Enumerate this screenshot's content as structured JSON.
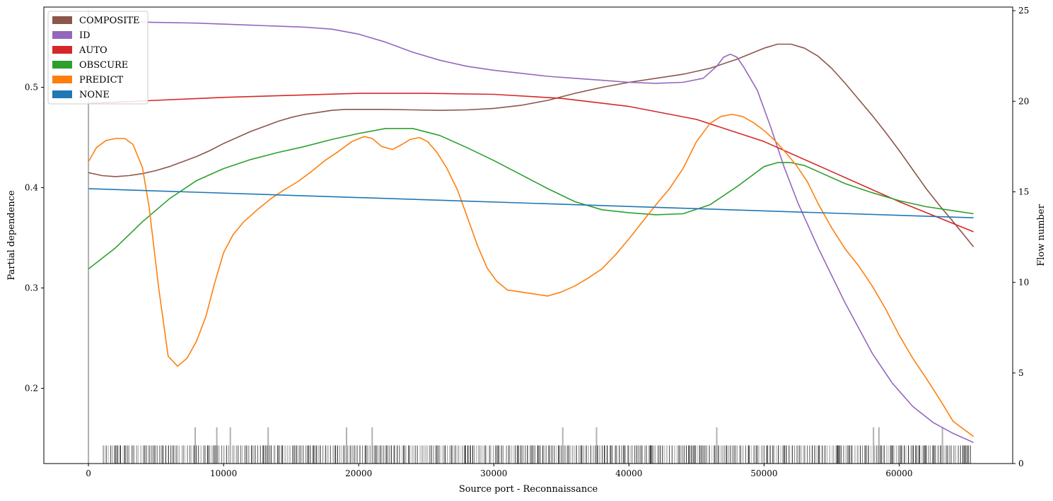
{
  "chart_data": {
    "type": "line",
    "xlabel": "Source port - Reconnaissance",
    "ylabel": "Partial dependence",
    "y2label": "Flow number",
    "xlim": [
      -3300,
      68400
    ],
    "ylim": [
      0.125,
      0.58
    ],
    "y2lim": [
      0,
      25.2
    ],
    "xticks": [
      0,
      10000,
      20000,
      30000,
      40000,
      50000,
      60000
    ],
    "yticks": [
      0.2,
      0.3,
      0.4,
      0.5
    ],
    "y2ticks": [
      0,
      5,
      10,
      15,
      20,
      25
    ],
    "legend_position": "upper-left",
    "series": [
      {
        "name": "COMPOSITE",
        "color": "#8c564b",
        "points": [
          [
            0,
            0.415
          ],
          [
            1000,
            0.412
          ],
          [
            2000,
            0.411
          ],
          [
            3000,
            0.412
          ],
          [
            4000,
            0.414
          ],
          [
            5000,
            0.417
          ],
          [
            6000,
            0.421
          ],
          [
            7000,
            0.426
          ],
          [
            8000,
            0.431
          ],
          [
            9000,
            0.437
          ],
          [
            10000,
            0.444
          ],
          [
            11000,
            0.45
          ],
          [
            12000,
            0.456
          ],
          [
            13000,
            0.461
          ],
          [
            14000,
            0.466
          ],
          [
            15000,
            0.47
          ],
          [
            16000,
            0.473
          ],
          [
            17000,
            0.475
          ],
          [
            18000,
            0.477
          ],
          [
            19000,
            0.478
          ],
          [
            20000,
            0.478
          ],
          [
            22000,
            0.478
          ],
          [
            24000,
            0.4775
          ],
          [
            26000,
            0.477
          ],
          [
            28000,
            0.4775
          ],
          [
            30000,
            0.479
          ],
          [
            32000,
            0.482
          ],
          [
            34000,
            0.487
          ],
          [
            36000,
            0.494
          ],
          [
            38000,
            0.5
          ],
          [
            40000,
            0.505
          ],
          [
            42000,
            0.509
          ],
          [
            44000,
            0.513
          ],
          [
            46000,
            0.519
          ],
          [
            48000,
            0.528
          ],
          [
            50000,
            0.539
          ],
          [
            51000,
            0.543
          ],
          [
            52000,
            0.543
          ],
          [
            53000,
            0.539
          ],
          [
            54000,
            0.531
          ],
          [
            55000,
            0.519
          ],
          [
            56000,
            0.504
          ],
          [
            57000,
            0.488
          ],
          [
            58000,
            0.472
          ],
          [
            59000,
            0.455
          ],
          [
            60000,
            0.437
          ],
          [
            61000,
            0.418
          ],
          [
            62000,
            0.399
          ],
          [
            63000,
            0.382
          ],
          [
            64000,
            0.366
          ],
          [
            65500,
            0.341
          ]
        ]
      },
      {
        "name": "ID",
        "color": "#9467bd",
        "points": [
          [
            0,
            0.566
          ],
          [
            4000,
            0.565
          ],
          [
            8000,
            0.564
          ],
          [
            12000,
            0.562
          ],
          [
            16000,
            0.56
          ],
          [
            18000,
            0.558
          ],
          [
            20000,
            0.553
          ],
          [
            22000,
            0.545
          ],
          [
            24000,
            0.535
          ],
          [
            26000,
            0.527
          ],
          [
            28000,
            0.521
          ],
          [
            30000,
            0.517
          ],
          [
            32000,
            0.514
          ],
          [
            34000,
            0.511
          ],
          [
            36000,
            0.509
          ],
          [
            38000,
            0.507
          ],
          [
            40000,
            0.505
          ],
          [
            42000,
            0.504
          ],
          [
            44000,
            0.505
          ],
          [
            45500,
            0.509
          ],
          [
            46500,
            0.521
          ],
          [
            47000,
            0.53
          ],
          [
            47500,
            0.533
          ],
          [
            48000,
            0.53
          ],
          [
            48500,
            0.52
          ],
          [
            49500,
            0.497
          ],
          [
            50500,
            0.46
          ],
          [
            51500,
            0.42
          ],
          [
            52500,
            0.385
          ],
          [
            54000,
            0.34
          ],
          [
            56000,
            0.285
          ],
          [
            58000,
            0.235
          ],
          [
            59500,
            0.205
          ],
          [
            61000,
            0.182
          ],
          [
            62500,
            0.166
          ],
          [
            64000,
            0.155
          ],
          [
            65500,
            0.146
          ]
        ]
      },
      {
        "name": "AUTO",
        "color": "#d62728",
        "points": [
          [
            0,
            0.484
          ],
          [
            5000,
            0.487
          ],
          [
            10000,
            0.49
          ],
          [
            15000,
            0.492
          ],
          [
            20000,
            0.494
          ],
          [
            25000,
            0.494
          ],
          [
            30000,
            0.493
          ],
          [
            35000,
            0.489
          ],
          [
            40000,
            0.481
          ],
          [
            45000,
            0.468
          ],
          [
            50000,
            0.446
          ],
          [
            55000,
            0.416
          ],
          [
            60000,
            0.386
          ],
          [
            65500,
            0.356
          ]
        ]
      },
      {
        "name": "OBSCURE",
        "color": "#2ca02c",
        "points": [
          [
            0,
            0.319
          ],
          [
            2000,
            0.34
          ],
          [
            4000,
            0.366
          ],
          [
            6000,
            0.389
          ],
          [
            8000,
            0.407
          ],
          [
            10000,
            0.419
          ],
          [
            12000,
            0.428
          ],
          [
            14000,
            0.435
          ],
          [
            16000,
            0.441
          ],
          [
            18000,
            0.448
          ],
          [
            20000,
            0.454
          ],
          [
            22000,
            0.459
          ],
          [
            24000,
            0.459
          ],
          [
            26000,
            0.452
          ],
          [
            28000,
            0.44
          ],
          [
            30000,
            0.427
          ],
          [
            32000,
            0.413
          ],
          [
            34000,
            0.399
          ],
          [
            36000,
            0.386
          ],
          [
            38000,
            0.378
          ],
          [
            40000,
            0.375
          ],
          [
            42000,
            0.373
          ],
          [
            44000,
            0.374
          ],
          [
            46000,
            0.383
          ],
          [
            48000,
            0.401
          ],
          [
            50000,
            0.421
          ],
          [
            51000,
            0.425
          ],
          [
            52000,
            0.425
          ],
          [
            53000,
            0.422
          ],
          [
            54000,
            0.416
          ],
          [
            56000,
            0.404
          ],
          [
            58000,
            0.395
          ],
          [
            60000,
            0.387
          ],
          [
            62000,
            0.381
          ],
          [
            64000,
            0.377
          ],
          [
            65500,
            0.374
          ]
        ]
      },
      {
        "name": "PREDICT",
        "color": "#ff7f0e",
        "points": [
          [
            0,
            0.426
          ],
          [
            600,
            0.44
          ],
          [
            1300,
            0.447
          ],
          [
            2000,
            0.449
          ],
          [
            2700,
            0.449
          ],
          [
            3300,
            0.443
          ],
          [
            4000,
            0.42
          ],
          [
            4500,
            0.38
          ],
          [
            5200,
            0.3
          ],
          [
            5900,
            0.232
          ],
          [
            6600,
            0.222
          ],
          [
            7300,
            0.23
          ],
          [
            8000,
            0.247
          ],
          [
            8700,
            0.272
          ],
          [
            9300,
            0.303
          ],
          [
            10000,
            0.335
          ],
          [
            10700,
            0.353
          ],
          [
            11500,
            0.366
          ],
          [
            12500,
            0.378
          ],
          [
            13500,
            0.389
          ],
          [
            14500,
            0.398
          ],
          [
            15500,
            0.406
          ],
          [
            16500,
            0.416
          ],
          [
            17500,
            0.427
          ],
          [
            18500,
            0.436
          ],
          [
            19500,
            0.446
          ],
          [
            20400,
            0.451
          ],
          [
            21000,
            0.449
          ],
          [
            21700,
            0.441
          ],
          [
            22500,
            0.438
          ],
          [
            23200,
            0.443
          ],
          [
            23800,
            0.448
          ],
          [
            24500,
            0.45
          ],
          [
            25100,
            0.446
          ],
          [
            25800,
            0.435
          ],
          [
            26500,
            0.42
          ],
          [
            27300,
            0.398
          ],
          [
            28000,
            0.372
          ],
          [
            28800,
            0.342
          ],
          [
            29500,
            0.32
          ],
          [
            30200,
            0.307
          ],
          [
            31000,
            0.298
          ],
          [
            32000,
            0.296
          ],
          [
            33000,
            0.294
          ],
          [
            34000,
            0.292
          ],
          [
            35000,
            0.296
          ],
          [
            36000,
            0.302
          ],
          [
            37000,
            0.31
          ],
          [
            38000,
            0.319
          ],
          [
            39000,
            0.333
          ],
          [
            40000,
            0.349
          ],
          [
            41000,
            0.366
          ],
          [
            42000,
            0.383
          ],
          [
            43000,
            0.399
          ],
          [
            44000,
            0.419
          ],
          [
            45000,
            0.446
          ],
          [
            46000,
            0.464
          ],
          [
            46800,
            0.471
          ],
          [
            47600,
            0.473
          ],
          [
            48400,
            0.471
          ],
          [
            49200,
            0.465
          ],
          [
            50000,
            0.457
          ],
          [
            50800,
            0.447
          ],
          [
            51600,
            0.435
          ],
          [
            52400,
            0.422
          ],
          [
            53200,
            0.406
          ],
          [
            54000,
            0.384
          ],
          [
            55000,
            0.36
          ],
          [
            56000,
            0.339
          ],
          [
            57000,
            0.322
          ],
          [
            58000,
            0.302
          ],
          [
            59000,
            0.279
          ],
          [
            60000,
            0.253
          ],
          [
            61000,
            0.23
          ],
          [
            62000,
            0.21
          ],
          [
            63000,
            0.189
          ],
          [
            64000,
            0.167
          ],
          [
            65500,
            0.152
          ]
        ]
      },
      {
        "name": "NONE",
        "color": "#1f77b4",
        "points": [
          [
            0,
            0.399
          ],
          [
            65500,
            0.37
          ]
        ]
      }
    ],
    "flow_counts_right_axis": [
      {
        "x": 0,
        "count": 25
      },
      {
        "x": 7900,
        "count": 2
      },
      {
        "x": 9500,
        "count": 2
      },
      {
        "x": 10500,
        "count": 2
      },
      {
        "x": 13300,
        "count": 2
      },
      {
        "x": 19100,
        "count": 2
      },
      {
        "x": 21000,
        "count": 2
      },
      {
        "x": 35100,
        "count": 2
      },
      {
        "x": 37600,
        "count": 2
      },
      {
        "x": 46500,
        "count": 2
      },
      {
        "x": 58100,
        "count": 2
      },
      {
        "x": 58500,
        "count": 2
      },
      {
        "x": 63200,
        "count": 2
      }
    ],
    "flow_rug": {
      "from": 1100,
      "to": 65400,
      "count": 1
    }
  }
}
